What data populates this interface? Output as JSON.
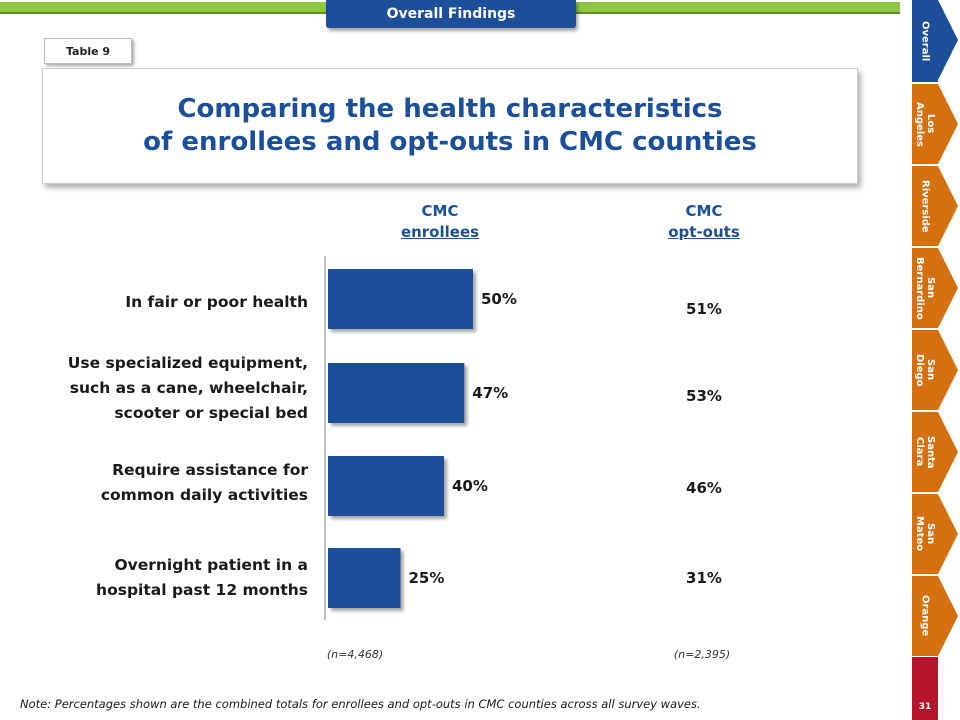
{
  "header": {
    "section_label": "Overall Findings",
    "table_label": "Table 9"
  },
  "title": {
    "line1": "Comparing the health characteristics",
    "line2": "of enrollees and opt-outs in CMC counties"
  },
  "columns": {
    "enrollees": {
      "line1": "CMC",
      "line2": "enrollees",
      "n": "(n=4,468)"
    },
    "optouts": {
      "line1": "CMC",
      "line2": "opt-outs",
      "n": "(n=2,395)"
    }
  },
  "rows": [
    {
      "lines": [
        "In fair or poor health"
      ]
    },
    {
      "lines": [
        "Use specialized equipment,",
        "such as a cane, wheelchair,",
        "scooter or special bed"
      ]
    },
    {
      "lines": [
        "Require assistance for",
        "common daily activities"
      ]
    },
    {
      "lines": [
        "Overnight patient in a",
        "hospital past 12 months"
      ]
    }
  ],
  "chart_data": {
    "type": "bar",
    "orientation": "horizontal",
    "categories": [
      "In fair or poor health",
      "Use specialized equipment, such as a cane, wheelchair, scooter or special bed",
      "Require assistance for common daily activities",
      "Overnight patient in a hospital past 12 months"
    ],
    "series": [
      {
        "name": "CMC enrollees",
        "values": [
          50,
          47,
          40,
          25
        ],
        "labels": [
          "50%",
          "47%",
          "40%",
          "25%"
        ]
      },
      {
        "name": "CMC opt-outs",
        "values": [
          51,
          53,
          46,
          31
        ],
        "labels": [
          "51%",
          "53%",
          "46%",
          "31%"
        ]
      }
    ],
    "xlim": [
      0,
      100
    ],
    "bar_color": "#1c4f9a"
  },
  "note": "Note: Percentages shown are the combined totals for enrollees and opt-outs in CMC counties across all survey waves.",
  "sidebar": {
    "tabs": [
      {
        "label": "Overall",
        "active": true
      },
      {
        "label": "Los\nAngeles",
        "active": false
      },
      {
        "label": "Riverside",
        "active": false
      },
      {
        "label": "San\nBernardino",
        "active": false
      },
      {
        "label": "San\nDiego",
        "active": false
      },
      {
        "label": "Santa\nClara",
        "active": false
      },
      {
        "label": "San\nMateo",
        "active": false
      },
      {
        "label": "Orange",
        "active": false
      }
    ],
    "page_number": "31"
  },
  "colors": {
    "brand_blue": "#1c4f9a",
    "accent_green": "#8dc641",
    "tab_orange": "#d4700f",
    "page_red": "#b5142b"
  }
}
